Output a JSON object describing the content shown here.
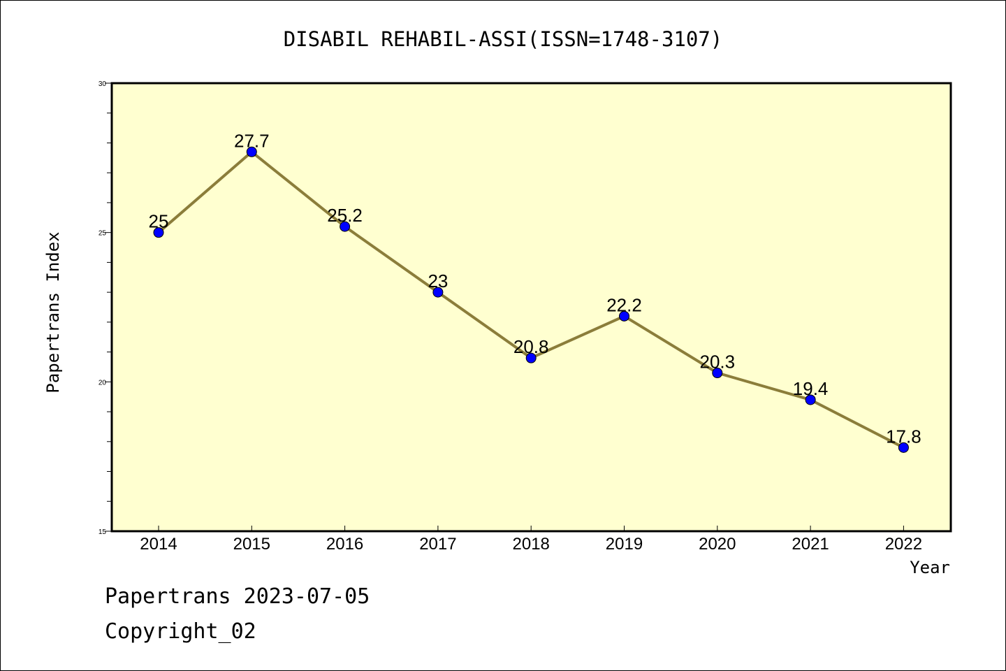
{
  "chart_data": {
    "type": "line",
    "title": "DISABIL REHABIL-ASSI(ISSN=1748-3107)",
    "xlabel": "Year",
    "ylabel": "Papertrans Index",
    "categories": [
      "2014",
      "2015",
      "2016",
      "2017",
      "2018",
      "2019",
      "2020",
      "2021",
      "2022"
    ],
    "series": [
      {
        "values": [
          25,
          27.7,
          25.2,
          23,
          20.8,
          22.2,
          20.3,
          19.4,
          17.8
        ],
        "labels": [
          "25",
          "27.7",
          "25.2",
          "23",
          "20.8",
          "22.2",
          "20.3",
          "19.4",
          "17.8"
        ]
      }
    ],
    "ylim": [
      15,
      30
    ],
    "yticks": [
      "15",
      "20",
      "25",
      "30"
    ],
    "grid": false,
    "colors": {
      "plot_background": "#ffffd0",
      "line": "#8b7d3a",
      "marker": "#0000ff"
    }
  },
  "footer": {
    "line1": "Papertrans 2023-07-05",
    "line2": "Copyright_02"
  }
}
